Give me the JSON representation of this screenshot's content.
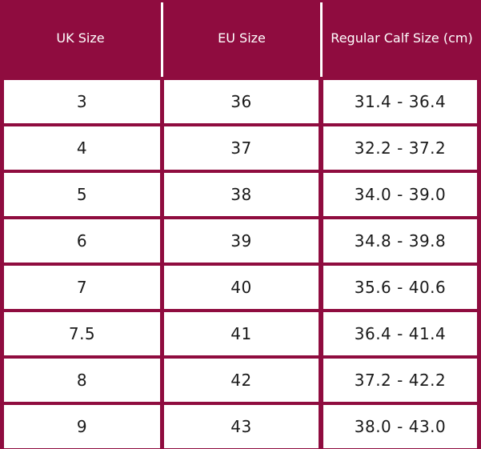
{
  "table": {
    "headers": {
      "uk": "UK Size",
      "eu": "EU Size",
      "calf": "Regular Calf Size (cm)"
    },
    "rows": [
      {
        "uk": "3",
        "eu": "36",
        "calf": "31.4 - 36.4"
      },
      {
        "uk": "4",
        "eu": "37",
        "calf": "32.2 - 37.2"
      },
      {
        "uk": "5",
        "eu": "38",
        "calf": "34.0 - 39.0"
      },
      {
        "uk": "6",
        "eu": "39",
        "calf": "34.8 - 39.8"
      },
      {
        "uk": "7",
        "eu": "40",
        "calf": "35.6 - 40.6"
      },
      {
        "uk": "7.5",
        "eu": "41",
        "calf": "36.4 - 41.4"
      },
      {
        "uk": "8",
        "eu": "42",
        "calf": "37.2 - 42.2"
      },
      {
        "uk": "9",
        "eu": "43",
        "calf": "38.0 - 43.0"
      }
    ]
  },
  "colors": {
    "header_background": "#8f0c3f",
    "cell_background": "#ffffff",
    "grid_lines": "#8f0c3f"
  }
}
